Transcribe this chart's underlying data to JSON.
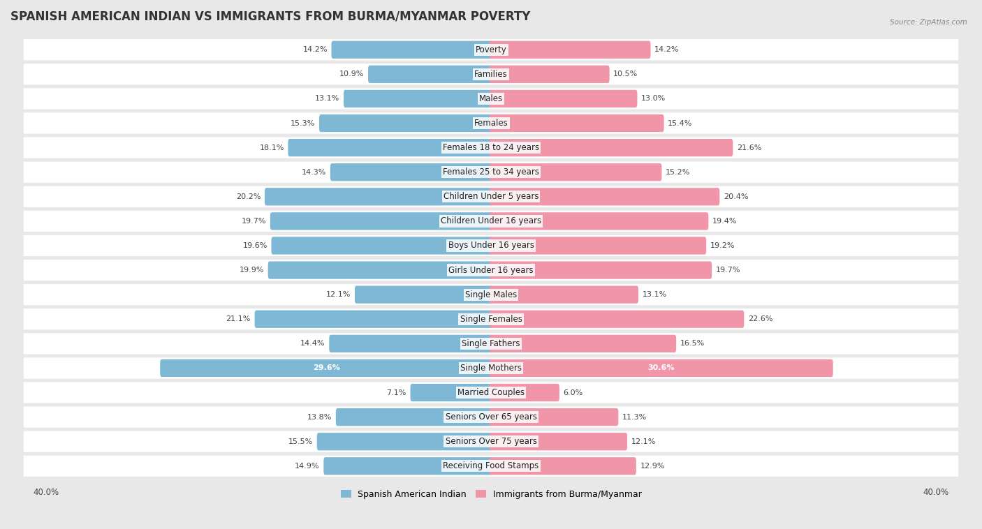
{
  "title": "SPANISH AMERICAN INDIAN VS IMMIGRANTS FROM BURMA/MYANMAR POVERTY",
  "source": "Source: ZipAtlas.com",
  "categories": [
    "Poverty",
    "Families",
    "Males",
    "Females",
    "Females 18 to 24 years",
    "Females 25 to 34 years",
    "Children Under 5 years",
    "Children Under 16 years",
    "Boys Under 16 years",
    "Girls Under 16 years",
    "Single Males",
    "Single Females",
    "Single Fathers",
    "Single Mothers",
    "Married Couples",
    "Seniors Over 65 years",
    "Seniors Over 75 years",
    "Receiving Food Stamps"
  ],
  "left_values": [
    14.2,
    10.9,
    13.1,
    15.3,
    18.1,
    14.3,
    20.2,
    19.7,
    19.6,
    19.9,
    12.1,
    21.1,
    14.4,
    29.6,
    7.1,
    13.8,
    15.5,
    14.9
  ],
  "right_values": [
    14.2,
    10.5,
    13.0,
    15.4,
    21.6,
    15.2,
    20.4,
    19.4,
    19.2,
    19.7,
    13.1,
    22.6,
    16.5,
    30.6,
    6.0,
    11.3,
    12.1,
    12.9
  ],
  "left_color": "#7EB8D4",
  "right_color": "#F096A8",
  "left_label": "Spanish American Indian",
  "right_label": "Immigrants from Burma/Myanmar",
  "xlim": 40.0,
  "row_bg_color": "#e8e8e8",
  "bar_bg_color": "#ffffff",
  "fig_bg_color": "#e8e8e8",
  "title_fontsize": 12,
  "label_fontsize": 8.5,
  "value_fontsize": 8.0,
  "axis_label_fontsize": 8.5
}
